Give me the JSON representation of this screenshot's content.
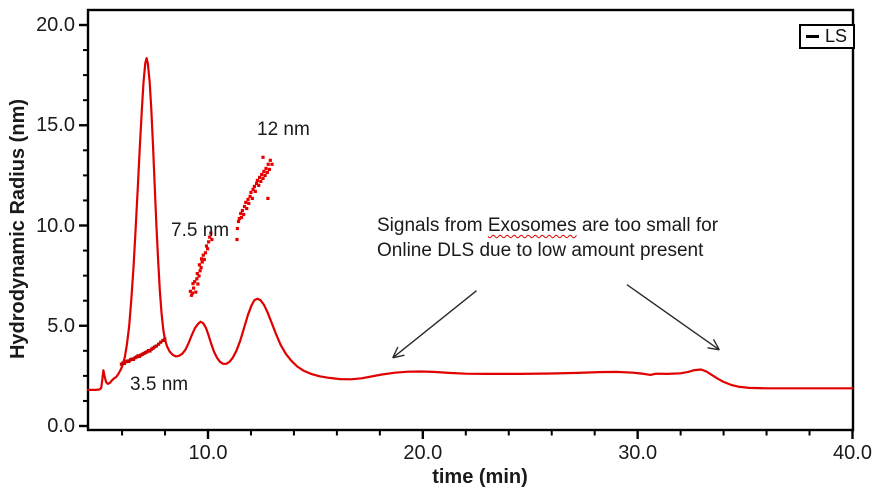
{
  "legend": {
    "label": "LS",
    "sample_color": "#000000"
  },
  "colors": {
    "curve": "#e00000",
    "scatter_dark": "#cf0000",
    "scatter_bright": "#e80000",
    "axis": "#000000",
    "text": "#1a1a1a",
    "arrow": "#2b2b2b",
    "spellcheck_underline": "#e00000"
  },
  "chart_data": {
    "type": "line",
    "title": "",
    "xlabel": "time (min)",
    "ylabel": "Hydrodynamic Radius (nm)",
    "xlim": [
      4.41,
      40.0
    ],
    "ylim": [
      0.0,
      20.0
    ],
    "grid": false,
    "legend_position": "top-right",
    "x_axis": {
      "major_ticks": [
        {
          "v": 10,
          "label": "10.0"
        },
        {
          "v": 20,
          "label": "20.0"
        },
        {
          "v": 30,
          "label": "30.0"
        },
        {
          "v": 40,
          "label": "40.0"
        }
      ],
      "minor_tick_step": 2
    },
    "y_axis": {
      "major_ticks": [
        {
          "v": 0,
          "label": "0.0"
        },
        {
          "v": 5,
          "label": "5.0"
        },
        {
          "v": 10,
          "label": "10.0"
        },
        {
          "v": 15,
          "label": "15.0"
        },
        {
          "v": 20,
          "label": "20.0"
        }
      ],
      "minor_tick_step": 1.25
    },
    "series": [
      {
        "name": "LS",
        "kind": "line",
        "color": "#e00000",
        "points": [
          [
            4.41,
            1.8
          ],
          [
            4.75,
            1.8
          ],
          [
            4.95,
            1.82
          ],
          [
            5.03,
            1.9
          ],
          [
            5.08,
            2.3
          ],
          [
            5.13,
            2.78
          ],
          [
            5.18,
            2.5
          ],
          [
            5.25,
            2.2
          ],
          [
            5.33,
            2.1
          ],
          [
            5.43,
            2.15
          ],
          [
            5.53,
            2.28
          ],
          [
            5.63,
            2.38
          ],
          [
            5.73,
            2.45
          ],
          [
            5.83,
            2.6
          ],
          [
            5.93,
            2.8
          ],
          [
            6.03,
            3.05
          ],
          [
            6.13,
            3.45
          ],
          [
            6.23,
            4.1
          ],
          [
            6.33,
            5.0
          ],
          [
            6.43,
            6.3
          ],
          [
            6.53,
            7.9
          ],
          [
            6.63,
            9.8
          ],
          [
            6.73,
            11.9
          ],
          [
            6.83,
            14.0
          ],
          [
            6.93,
            15.9
          ],
          [
            7.0,
            17.2
          ],
          [
            7.08,
            18.1
          ],
          [
            7.14,
            18.35
          ],
          [
            7.2,
            18.1
          ],
          [
            7.28,
            17.2
          ],
          [
            7.36,
            15.8
          ],
          [
            7.44,
            14.0
          ],
          [
            7.52,
            12.0
          ],
          [
            7.6,
            10.0
          ],
          [
            7.68,
            8.2
          ],
          [
            7.76,
            6.7
          ],
          [
            7.84,
            5.6
          ],
          [
            7.92,
            4.8
          ],
          [
            8.0,
            4.3
          ],
          [
            8.1,
            3.95
          ],
          [
            8.22,
            3.7
          ],
          [
            8.35,
            3.55
          ],
          [
            8.5,
            3.47
          ],
          [
            8.65,
            3.5
          ],
          [
            8.8,
            3.6
          ],
          [
            8.95,
            3.8
          ],
          [
            9.1,
            4.15
          ],
          [
            9.25,
            4.55
          ],
          [
            9.4,
            4.9
          ],
          [
            9.55,
            5.1
          ],
          [
            9.65,
            5.2
          ],
          [
            9.78,
            5.12
          ],
          [
            9.9,
            4.9
          ],
          [
            10.02,
            4.55
          ],
          [
            10.15,
            4.1
          ],
          [
            10.28,
            3.7
          ],
          [
            10.42,
            3.4
          ],
          [
            10.56,
            3.2
          ],
          [
            10.7,
            3.1
          ],
          [
            10.85,
            3.1
          ],
          [
            11.0,
            3.2
          ],
          [
            11.15,
            3.4
          ],
          [
            11.32,
            3.75
          ],
          [
            11.5,
            4.25
          ],
          [
            11.68,
            4.9
          ],
          [
            11.86,
            5.55
          ],
          [
            12.02,
            6.0
          ],
          [
            12.16,
            6.28
          ],
          [
            12.3,
            6.35
          ],
          [
            12.44,
            6.28
          ],
          [
            12.6,
            6.05
          ],
          [
            12.78,
            5.65
          ],
          [
            12.96,
            5.15
          ],
          [
            13.16,
            4.6
          ],
          [
            13.38,
            4.05
          ],
          [
            13.62,
            3.6
          ],
          [
            13.88,
            3.25
          ],
          [
            14.15,
            2.97
          ],
          [
            14.45,
            2.76
          ],
          [
            14.8,
            2.6
          ],
          [
            15.2,
            2.48
          ],
          [
            15.65,
            2.4
          ],
          [
            16.15,
            2.34
          ],
          [
            16.65,
            2.33
          ],
          [
            17.15,
            2.38
          ],
          [
            17.6,
            2.47
          ],
          [
            18.1,
            2.57
          ],
          [
            18.7,
            2.66
          ],
          [
            19.3,
            2.71
          ],
          [
            19.9,
            2.72
          ],
          [
            20.5,
            2.7
          ],
          [
            21.2,
            2.65
          ],
          [
            22.0,
            2.61
          ],
          [
            23.0,
            2.6
          ],
          [
            24.5,
            2.6
          ],
          [
            26.0,
            2.62
          ],
          [
            27.2,
            2.65
          ],
          [
            28.2,
            2.69
          ],
          [
            29.0,
            2.7
          ],
          [
            29.8,
            2.66
          ],
          [
            30.3,
            2.6
          ],
          [
            30.6,
            2.55
          ],
          [
            30.85,
            2.61
          ],
          [
            31.4,
            2.6
          ],
          [
            32.0,
            2.63
          ],
          [
            32.35,
            2.7
          ],
          [
            32.65,
            2.79
          ],
          [
            32.95,
            2.82
          ],
          [
            33.2,
            2.72
          ],
          [
            33.45,
            2.55
          ],
          [
            33.7,
            2.38
          ],
          [
            34.0,
            2.2
          ],
          [
            34.35,
            2.05
          ],
          [
            34.75,
            1.95
          ],
          [
            35.2,
            1.9
          ],
          [
            36.0,
            1.88
          ],
          [
            37.5,
            1.88
          ],
          [
            40.0,
            1.88
          ]
        ]
      },
      {
        "name": "DLS radius cluster 3.5 nm",
        "kind": "scatter",
        "color": "#cf0000",
        "points": [
          [
            5.97,
            3.08
          ],
          [
            6.04,
            3.14
          ],
          [
            6.11,
            3.12
          ],
          [
            6.18,
            3.2
          ],
          [
            6.25,
            3.24
          ],
          [
            6.32,
            3.22
          ],
          [
            6.39,
            3.3
          ],
          [
            6.46,
            3.34
          ],
          [
            6.53,
            3.32
          ],
          [
            6.6,
            3.4
          ],
          [
            6.67,
            3.44
          ],
          [
            6.74,
            3.5
          ],
          [
            6.81,
            3.47
          ],
          [
            6.88,
            3.54
          ],
          [
            6.95,
            3.58
          ],
          [
            7.02,
            3.62
          ],
          [
            7.09,
            3.66
          ],
          [
            7.16,
            3.7
          ],
          [
            7.23,
            3.76
          ],
          [
            7.3,
            3.74
          ],
          [
            7.37,
            3.83
          ],
          [
            7.44,
            3.88
          ],
          [
            7.51,
            3.94
          ],
          [
            7.6,
            3.99
          ],
          [
            7.7,
            4.08
          ],
          [
            7.8,
            4.18
          ],
          [
            7.9,
            4.27
          ],
          [
            7.99,
            4.34
          ]
        ]
      },
      {
        "name": "DLS radius cluster 7.5 nm",
        "kind": "scatter",
        "color": "#e80000",
        "points": [
          [
            9.18,
            6.72
          ],
          [
            9.23,
            6.52
          ],
          [
            9.28,
            6.63
          ],
          [
            9.33,
            6.88
          ],
          [
            9.3,
            7.1
          ],
          [
            9.38,
            7.2
          ],
          [
            9.43,
            6.68
          ],
          [
            9.48,
            7.34
          ],
          [
            9.53,
            7.08
          ],
          [
            9.5,
            7.6
          ],
          [
            9.58,
            7.48
          ],
          [
            9.63,
            7.74
          ],
          [
            9.6,
            8.04
          ],
          [
            9.68,
            7.9
          ],
          [
            9.73,
            8.18
          ],
          [
            9.78,
            8.52
          ],
          [
            9.7,
            8.34
          ],
          [
            9.83,
            8.3
          ],
          [
            9.88,
            8.64
          ],
          [
            9.93,
            8.98
          ],
          [
            9.98,
            8.84
          ],
          [
            10.03,
            9.18
          ],
          [
            10.08,
            9.42
          ],
          [
            10.13,
            9.62
          ],
          [
            10.18,
            9.3
          ]
        ]
      },
      {
        "name": "DLS radius cluster 12 nm",
        "kind": "scatter",
        "color": "#e80000",
        "points": [
          [
            11.35,
            9.3
          ],
          [
            11.37,
            9.85
          ],
          [
            11.42,
            10.2
          ],
          [
            11.46,
            10.35
          ],
          [
            11.52,
            10.6
          ],
          [
            11.56,
            10.4
          ],
          [
            11.6,
            10.75
          ],
          [
            11.66,
            10.55
          ],
          [
            11.7,
            10.95
          ],
          [
            11.76,
            11.15
          ],
          [
            11.8,
            10.85
          ],
          [
            11.86,
            11.3
          ],
          [
            11.9,
            11.1
          ],
          [
            11.96,
            11.45
          ],
          [
            12.0,
            11.65
          ],
          [
            12.06,
            11.35
          ],
          [
            12.1,
            11.8
          ],
          [
            12.16,
            11.95
          ],
          [
            12.2,
            11.7
          ],
          [
            12.26,
            12.1
          ],
          [
            12.3,
            12.25
          ],
          [
            12.36,
            12.0
          ],
          [
            12.4,
            12.4
          ],
          [
            12.46,
            12.2
          ],
          [
            12.5,
            12.55
          ],
          [
            12.56,
            12.35
          ],
          [
            12.56,
            13.4
          ],
          [
            12.6,
            12.7
          ],
          [
            12.66,
            12.5
          ],
          [
            12.7,
            12.85
          ],
          [
            12.76,
            12.65
          ],
          [
            12.8,
            13.05
          ],
          [
            12.86,
            12.8
          ],
          [
            12.9,
            13.25
          ],
          [
            12.79,
            11.35
          ],
          [
            12.98,
            13.05
          ]
        ]
      }
    ],
    "annotations": {
      "point_labels": [
        {
          "text": "3.5 nm",
          "t": 6.35,
          "r": 2.6
        },
        {
          "text": "7.5 nm",
          "t": 8.28,
          "r": 10.27
        },
        {
          "text": "12 nm",
          "t": 12.28,
          "r": 15.3
        }
      ],
      "note": {
        "t": 17.86,
        "r": 10.62,
        "line1_pre": "Signals from ",
        "line1_word": "Exosomes",
        "line1_post": " are too small for",
        "line2": "Online DLS due to low amount present"
      },
      "arrows": [
        {
          "from_t": 22.5,
          "from_r": 6.75,
          "to_t": 18.6,
          "to_r": 3.4
        },
        {
          "from_t": 29.5,
          "from_r": 7.05,
          "to_t": 33.8,
          "to_r": 3.8
        }
      ]
    }
  }
}
